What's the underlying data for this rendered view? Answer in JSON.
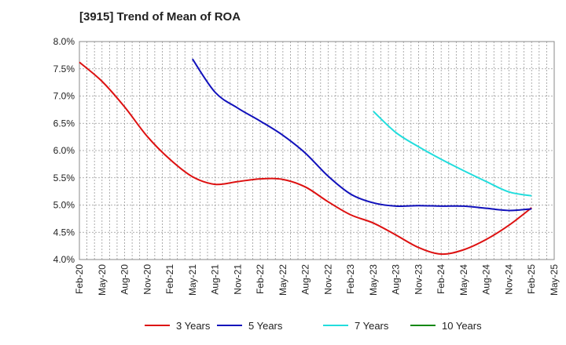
{
  "chart_data": {
    "type": "line",
    "title": "[3915]  Trend of Mean of ROA",
    "xlabel": "",
    "ylabel": "",
    "x_ticks": [
      "Feb-20",
      "May-20",
      "Aug-20",
      "Nov-20",
      "Feb-21",
      "May-21",
      "Aug-21",
      "Nov-21",
      "Feb-22",
      "May-22",
      "Aug-22",
      "Nov-22",
      "Feb-23",
      "May-23",
      "Aug-23",
      "Nov-23",
      "Feb-24",
      "May-24",
      "Aug-24",
      "Nov-24",
      "Feb-25",
      "May-25"
    ],
    "y_ticks": [
      "4.0%",
      "4.5%",
      "5.0%",
      "5.5%",
      "6.0%",
      "6.5%",
      "7.0%",
      "7.5%",
      "8.0%"
    ],
    "ylim": [
      4.0,
      8.0
    ],
    "grid": true,
    "legend_position": "bottom",
    "series": [
      {
        "name": "3 Years",
        "color": "#dd1111",
        "x": [
          "Feb-20",
          "May-20",
          "Aug-20",
          "Nov-20",
          "Feb-21",
          "May-21",
          "Aug-21",
          "Nov-21",
          "Feb-22",
          "May-22",
          "Aug-22",
          "Nov-22",
          "Feb-23",
          "May-23",
          "Aug-23",
          "Nov-23",
          "Feb-24",
          "May-24",
          "Aug-24",
          "Nov-24",
          "Feb-25"
        ],
        "values": [
          7.62,
          7.27,
          6.8,
          6.26,
          5.84,
          5.52,
          5.38,
          5.43,
          5.48,
          5.47,
          5.33,
          5.06,
          4.82,
          4.67,
          4.45,
          4.22,
          4.1,
          4.18,
          4.37,
          4.63,
          4.95
        ]
      },
      {
        "name": "5 Years",
        "color": "#1111bb",
        "x": [
          "May-21",
          "Aug-21",
          "Nov-21",
          "Feb-22",
          "May-22",
          "Aug-22",
          "Nov-22",
          "Feb-23",
          "May-23",
          "Aug-23",
          "Nov-23",
          "Feb-24",
          "May-24",
          "Aug-24",
          "Nov-24",
          "Feb-25"
        ],
        "values": [
          7.68,
          7.07,
          6.78,
          6.54,
          6.28,
          5.95,
          5.53,
          5.2,
          5.04,
          4.98,
          4.99,
          4.98,
          4.98,
          4.94,
          4.9,
          4.93
        ]
      },
      {
        "name": "7 Years",
        "color": "#22dddd",
        "x": [
          "May-23",
          "Aug-23",
          "Nov-23",
          "Feb-24",
          "May-24",
          "Aug-24",
          "Nov-24",
          "Feb-25"
        ],
        "values": [
          6.72,
          6.33,
          6.07,
          5.84,
          5.63,
          5.43,
          5.24,
          5.17
        ]
      },
      {
        "name": "10 Years",
        "color": "#118811",
        "x": [],
        "values": []
      }
    ]
  }
}
